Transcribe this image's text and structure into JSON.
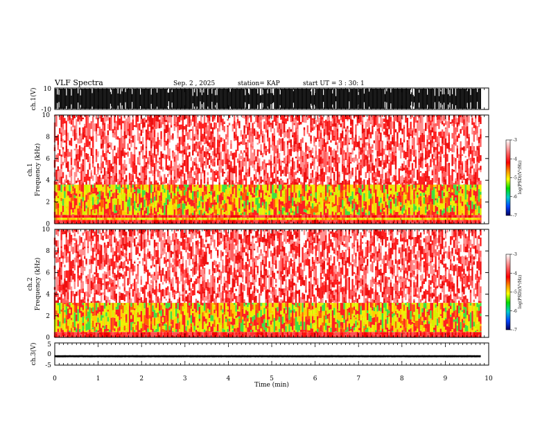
{
  "header": {
    "title": "VLF Spectra",
    "date": "Sep. 2 , 2025",
    "station": "station= KAP",
    "start": "start UT = 3 : 30: 1"
  },
  "chart_data": [
    {
      "type": "line",
      "name": "ch1-waveform",
      "ylabel": "ch.1(V)",
      "ylim": [
        -10,
        10
      ],
      "yticks": [
        "10",
        "-10"
      ],
      "xlim": [
        0,
        10
      ],
      "data_end_min": 9.82,
      "description_values": {
        "saturated_fraction": 0.85
      }
    },
    {
      "type": "heatmap",
      "name": "ch1-spectrogram",
      "ylabel": "ch.1\nFrequency (kHz)",
      "ylim": [
        0,
        10
      ],
      "yticks": [
        "0",
        "2",
        "4",
        "6",
        "8",
        "10"
      ],
      "xlim": [
        0,
        10
      ],
      "data_end_min": 9.82,
      "bands_khz": [
        {
          "from": 0.0,
          "to": 0.35,
          "level": "red"
        },
        {
          "from": 0.35,
          "to": 0.55,
          "level": "yellow"
        },
        {
          "from": 0.55,
          "to": 0.8,
          "level": "red"
        },
        {
          "from": 0.8,
          "to": 3.6,
          "level": "yellow-green"
        },
        {
          "from": 3.6,
          "to": 10.0,
          "level": "red-sparse"
        }
      ],
      "colorbar": {
        "label": "log(PSD)(V²/Hz)",
        "range": [
          -7,
          -3
        ],
        "ticks": [
          "-3",
          "-4",
          "-5",
          "-6",
          "-7"
        ]
      }
    },
    {
      "type": "heatmap",
      "name": "ch2-spectrogram",
      "ylabel": "ch.2\nFrequency (kHz)",
      "ylim": [
        0,
        10
      ],
      "yticks": [
        "0",
        "2",
        "4",
        "6",
        "8",
        "10"
      ],
      "xlim": [
        0,
        10
      ],
      "data_end_min": 9.82,
      "bands_khz": [
        {
          "from": 0.0,
          "to": 0.5,
          "level": "red"
        },
        {
          "from": 0.5,
          "to": 3.2,
          "level": "yellow-green"
        },
        {
          "from": 3.2,
          "to": 10.0,
          "level": "red-sparse"
        }
      ],
      "colorbar": {
        "label": "log(PSD)(V²/Hz)",
        "range": [
          -7,
          -3
        ],
        "ticks": [
          "-3",
          "-4",
          "-5",
          "-6",
          "-7"
        ]
      }
    },
    {
      "type": "line",
      "name": "ch3-waveform",
      "ylabel": "ch.3(V)",
      "ylim": [
        -5,
        5
      ],
      "yticks": [
        "5",
        "0",
        "-5"
      ],
      "xlim": [
        0,
        10
      ],
      "data_end_min": 9.82,
      "level_v": -1.0,
      "amplitude_v": 0.4
    }
  ],
  "xaxis": {
    "label": "Time (min)",
    "ticks": [
      "0",
      "1",
      "2",
      "3",
      "4",
      "5",
      "6",
      "7",
      "8",
      "9",
      "10"
    ]
  },
  "colors": {
    "frame": "#000000",
    "red": "#ff2020",
    "yellow": "#f0f000",
    "green": "#30e030"
  }
}
